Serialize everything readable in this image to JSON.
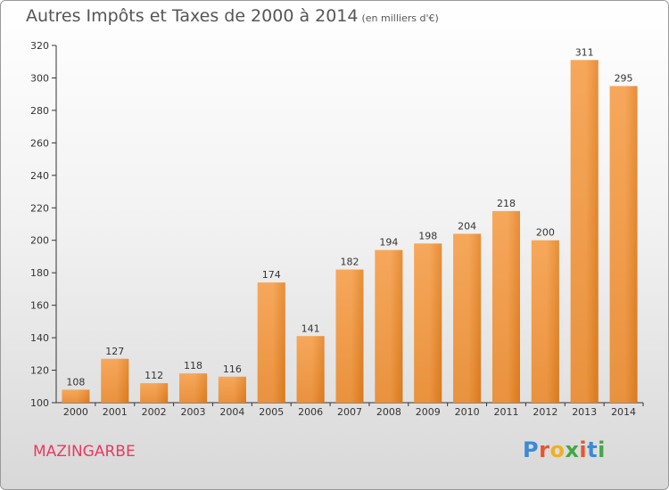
{
  "title": "Autres Impôts et Taxes de 2000 à 2014",
  "unit": "(en milliers d'€)",
  "place": "MAZINGARBE",
  "logo": "Proxiti",
  "colors": {
    "bar_light": "#f6a75a",
    "bar_dark": "#d97a1e",
    "place": "#e83a63"
  },
  "chart_data": {
    "type": "bar",
    "categories": [
      "2000",
      "2001",
      "2002",
      "2003",
      "2004",
      "2005",
      "2006",
      "2007",
      "2008",
      "2009",
      "2010",
      "2011",
      "2012",
      "2013",
      "2014"
    ],
    "values": [
      108,
      127,
      112,
      118,
      116,
      174,
      141,
      182,
      194,
      198,
      204,
      218,
      200,
      311,
      295
    ],
    "ylim": [
      100,
      320
    ],
    "yticks": [
      100,
      120,
      140,
      160,
      180,
      200,
      220,
      240,
      260,
      280,
      300,
      320
    ],
    "grid": false
  }
}
